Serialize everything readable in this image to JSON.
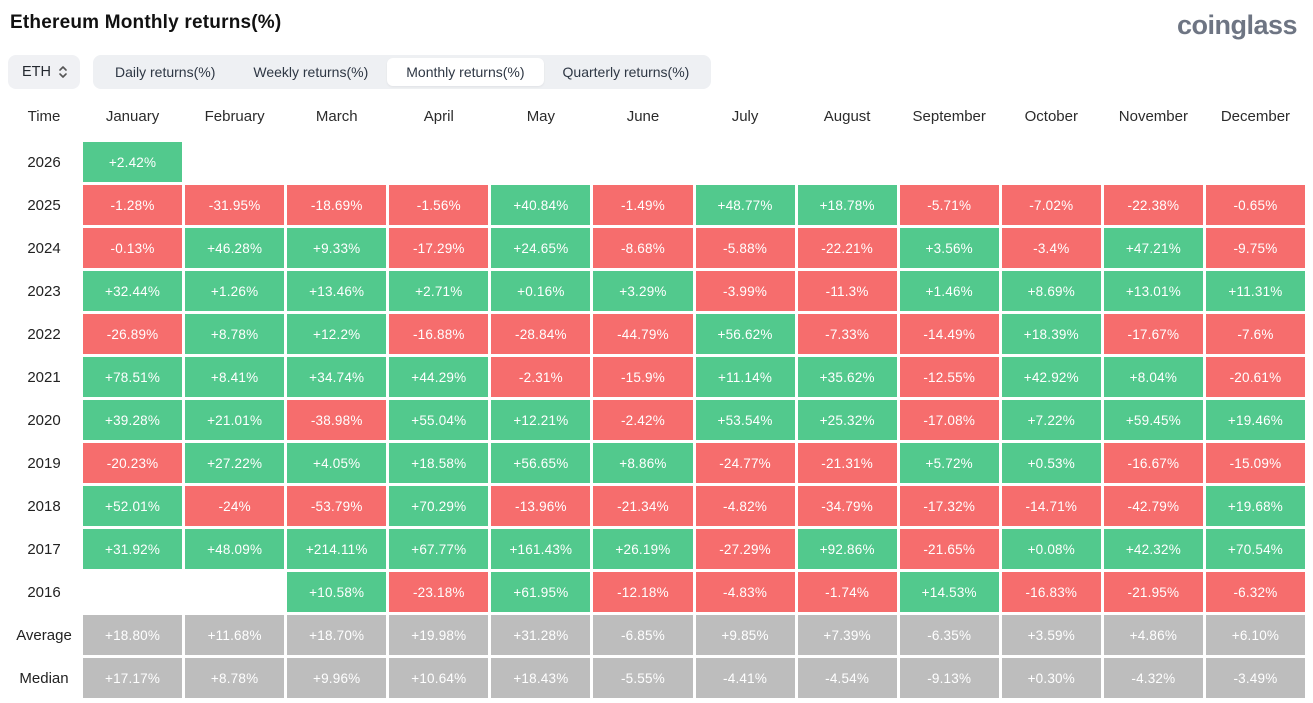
{
  "page": {
    "title": "Ethereum Monthly returns(%)",
    "logo": "coinglass"
  },
  "controls": {
    "symbol_select": {
      "value": "ETH"
    },
    "tabs": [
      {
        "label": "Daily returns(%)",
        "active": false
      },
      {
        "label": "Weekly returns(%)",
        "active": false
      },
      {
        "label": "Monthly returns(%)",
        "active": true
      },
      {
        "label": "Quarterly returns(%)",
        "active": false
      }
    ]
  },
  "colors": {
    "positive": "#52c98d",
    "negative": "#f66d6d",
    "neutral": "#bdbdbd"
  },
  "chart_data": {
    "type": "heatmap",
    "title": "Ethereum Monthly returns(%)",
    "row_header": "Time",
    "columns": [
      "January",
      "February",
      "March",
      "April",
      "May",
      "June",
      "July",
      "August",
      "September",
      "October",
      "November",
      "December"
    ],
    "rows": [
      {
        "label": "2026",
        "kind": "year",
        "values": [
          "+2.42%",
          null,
          null,
          null,
          null,
          null,
          null,
          null,
          null,
          null,
          null,
          null
        ]
      },
      {
        "label": "2025",
        "kind": "year",
        "values": [
          "-1.28%",
          "-31.95%",
          "-18.69%",
          "-1.56%",
          "+40.84%",
          "-1.49%",
          "+48.77%",
          "+18.78%",
          "-5.71%",
          "-7.02%",
          "-22.38%",
          "-0.65%"
        ]
      },
      {
        "label": "2024",
        "kind": "year",
        "values": [
          "-0.13%",
          "+46.28%",
          "+9.33%",
          "-17.29%",
          "+24.65%",
          "-8.68%",
          "-5.88%",
          "-22.21%",
          "+3.56%",
          "-3.4%",
          "+47.21%",
          "-9.75%"
        ]
      },
      {
        "label": "2023",
        "kind": "year",
        "values": [
          "+32.44%",
          "+1.26%",
          "+13.46%",
          "+2.71%",
          "+0.16%",
          "+3.29%",
          "-3.99%",
          "-11.3%",
          "+1.46%",
          "+8.69%",
          "+13.01%",
          "+11.31%"
        ]
      },
      {
        "label": "2022",
        "kind": "year",
        "values": [
          "-26.89%",
          "+8.78%",
          "+12.2%",
          "-16.88%",
          "-28.84%",
          "-44.79%",
          "+56.62%",
          "-7.33%",
          "-14.49%",
          "+18.39%",
          "-17.67%",
          "-7.6%"
        ]
      },
      {
        "label": "2021",
        "kind": "year",
        "values": [
          "+78.51%",
          "+8.41%",
          "+34.74%",
          "+44.29%",
          "-2.31%",
          "-15.9%",
          "+11.14%",
          "+35.62%",
          "-12.55%",
          "+42.92%",
          "+8.04%",
          "-20.61%"
        ]
      },
      {
        "label": "2020",
        "kind": "year",
        "values": [
          "+39.28%",
          "+21.01%",
          "-38.98%",
          "+55.04%",
          "+12.21%",
          "-2.42%",
          "+53.54%",
          "+25.32%",
          "-17.08%",
          "+7.22%",
          "+59.45%",
          "+19.46%"
        ]
      },
      {
        "label": "2019",
        "kind": "year",
        "values": [
          "-20.23%",
          "+27.22%",
          "+4.05%",
          "+18.58%",
          "+56.65%",
          "+8.86%",
          "-24.77%",
          "-21.31%",
          "+5.72%",
          "+0.53%",
          "-16.67%",
          "-15.09%"
        ]
      },
      {
        "label": "2018",
        "kind": "year",
        "values": [
          "+52.01%",
          "-24%",
          "-53.79%",
          "+70.29%",
          "-13.96%",
          "-21.34%",
          "-4.82%",
          "-34.79%",
          "-17.32%",
          "-14.71%",
          "-42.79%",
          "+19.68%"
        ]
      },
      {
        "label": "2017",
        "kind": "year",
        "values": [
          "+31.92%",
          "+48.09%",
          "+214.11%",
          "+67.77%",
          "+161.43%",
          "+26.19%",
          "-27.29%",
          "+92.86%",
          "-21.65%",
          "+0.08%",
          "+42.32%",
          "+70.54%"
        ]
      },
      {
        "label": "2016",
        "kind": "year",
        "values": [
          null,
          null,
          "+10.58%",
          "-23.18%",
          "+61.95%",
          "-12.18%",
          "-4.83%",
          "-1.74%",
          "+14.53%",
          "-16.83%",
          "-21.95%",
          "-6.32%"
        ]
      },
      {
        "label": "Average",
        "kind": "stat",
        "values": [
          "+18.80%",
          "+11.68%",
          "+18.70%",
          "+19.98%",
          "+31.28%",
          "-6.85%",
          "+9.85%",
          "+7.39%",
          "-6.35%",
          "+3.59%",
          "+4.86%",
          "+6.10%"
        ]
      },
      {
        "label": "Median",
        "kind": "stat",
        "values": [
          "+17.17%",
          "+8.78%",
          "+9.96%",
          "+10.64%",
          "+18.43%",
          "-5.55%",
          "-4.41%",
          "-4.54%",
          "-9.13%",
          "+0.30%",
          "-4.32%",
          "-3.49%"
        ]
      }
    ]
  }
}
